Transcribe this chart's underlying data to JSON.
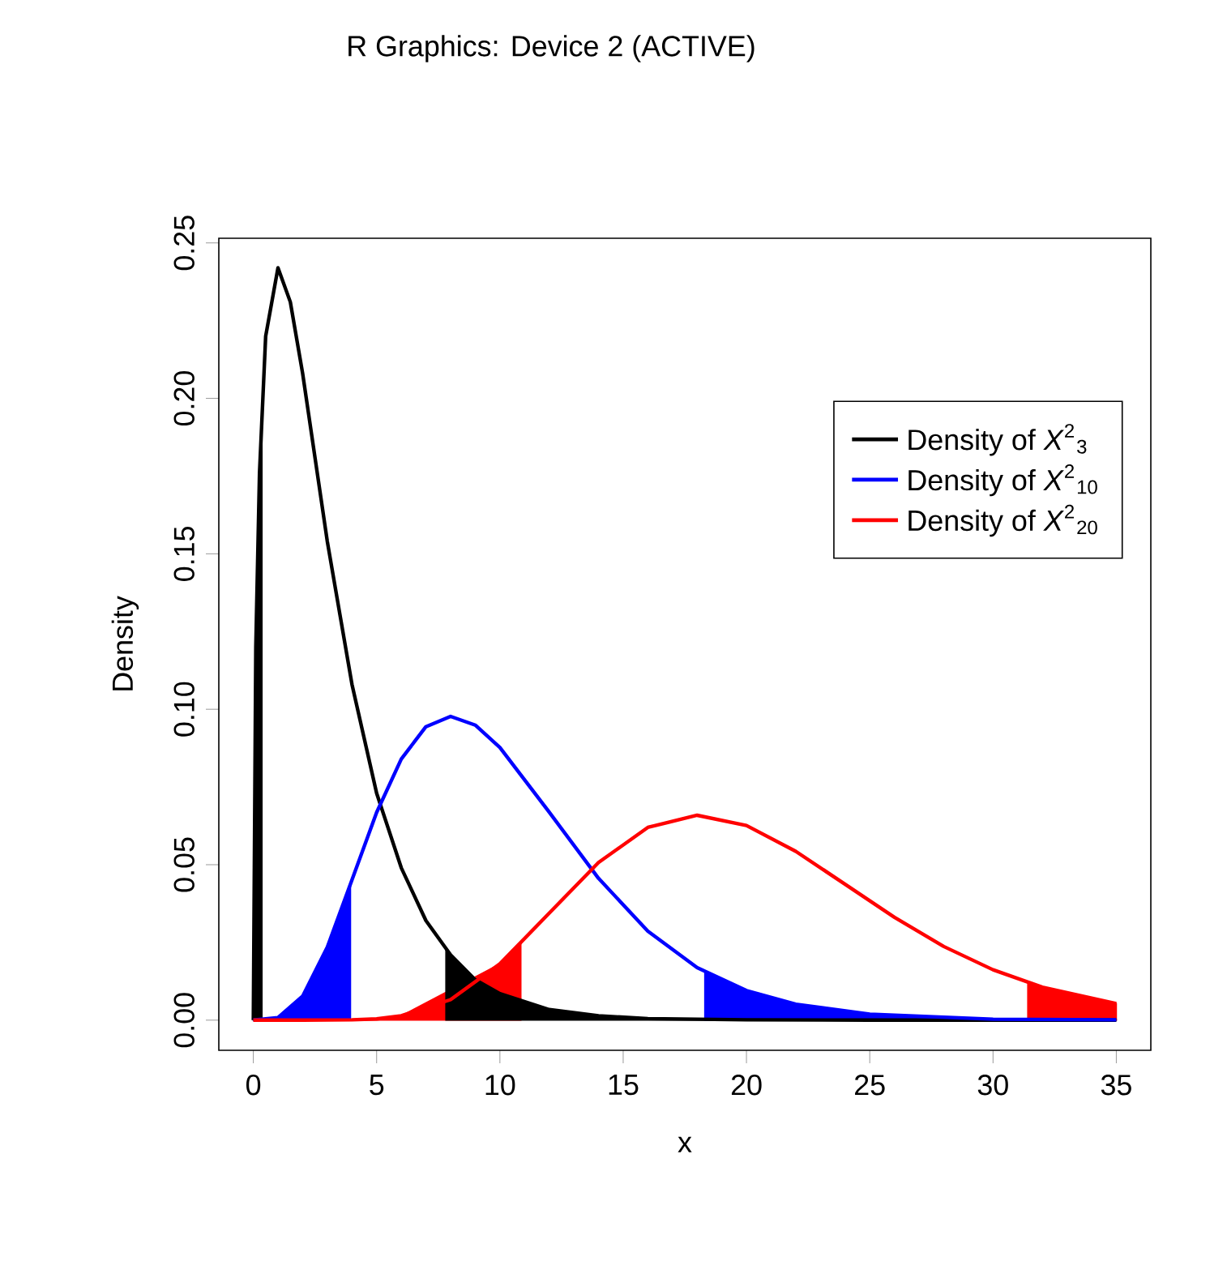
{
  "chart_data": {
    "type": "line",
    "title": "R Graphics: Device 2 (ACTIVE)",
    "xlabel": "x",
    "ylabel": "Density",
    "xlim": [
      -1.4,
      36.4
    ],
    "ylim": [
      -0.0097,
      0.2515
    ],
    "xticks": [
      0,
      5,
      10,
      15,
      20,
      25,
      30,
      35
    ],
    "yticks": [
      {
        "value": 0,
        "label": "0.00"
      },
      {
        "value": 0.05,
        "label": "0.05"
      },
      {
        "value": 0.1,
        "label": "0.10"
      },
      {
        "value": 0.15,
        "label": "0.15"
      },
      {
        "value": 0.2,
        "label": "0.20"
      },
      {
        "value": 0.25,
        "label": "0.25"
      }
    ],
    "legend": "top right",
    "marker": "none",
    "line_style": "solid",
    "series": [
      {
        "type": "area",
        "color": "#000000",
        "x": [
          0,
          0.1,
          0.25,
          0.35
        ],
        "values": [
          0,
          0.12,
          0.176,
          0.198
        ]
      },
      {
        "type": "area",
        "color": "#0000ff",
        "x": [
          0,
          1,
          2,
          3,
          3.94
        ],
        "values": [
          0,
          0.0008,
          0.0077,
          0.0235,
          0.0438
        ]
      },
      {
        "type": "area",
        "color": "#ff0000",
        "x": [
          0,
          2,
          4,
          5,
          6,
          8,
          10,
          10.85
        ],
        "values": [
          0,
          0,
          0.0001,
          0.0004,
          0.0014,
          null,
          0.0181,
          0.0247
        ]
      },
      {
        "type": "area",
        "color": "#000000",
        "x": [
          7.81,
          8,
          9,
          10,
          12,
          14,
          16,
          20,
          25,
          30,
          35
        ],
        "values": [
          0.0225,
          0.021,
          0.013,
          0.0085,
          0.0034,
          0.0014,
          0.0005,
          0.0001,
          0,
          0,
          0
        ]
      },
      {
        "type": "area",
        "color": "#0000ff",
        "x": [
          18.31,
          20,
          22,
          25,
          30,
          35
        ],
        "values": [
          0.0155,
          0.0095,
          0.0051,
          0.0019,
          0.0003,
          0.0001
        ]
      },
      {
        "type": "area",
        "color": "#ff0000",
        "x": [
          31.41,
          32,
          35
        ],
        "values": [
          0.0121,
          0.0106,
          0.0053
        ]
      },
      {
        "name": "Density of *X*$^{2}$$_{3}$",
        "color": "#000000",
        "x": [
          0,
          0.1,
          0.25,
          0.5,
          1,
          1.5,
          2,
          3,
          4,
          5,
          6,
          7,
          8,
          9,
          10,
          12,
          14,
          16,
          20,
          25,
          30,
          35
        ],
        "values": [
          0,
          0.12,
          0.176,
          0.22,
          0.242,
          0.231,
          0.208,
          0.154,
          0.108,
          0.073,
          0.049,
          0.032,
          0.021,
          0.013,
          0.0085,
          0.0034,
          0.0014,
          0.0005,
          0.0001,
          0,
          0,
          0
        ]
      },
      {
        "name": "Density of *X*$^{2}$$_{10}$",
        "color": "#0000ff",
        "x": [
          0,
          1,
          2,
          3,
          4,
          5,
          6,
          7,
          8,
          9,
          10,
          12,
          14,
          16,
          18,
          20,
          22,
          25,
          30,
          35
        ],
        "values": [
          0,
          0.0008,
          0.0077,
          0.0235,
          0.0451,
          0.0668,
          0.084,
          0.0944,
          0.0977,
          0.0949,
          0.0877,
          0.0669,
          0.0456,
          0.0286,
          0.0169,
          0.0095,
          0.0051,
          0.0019,
          0.0003,
          0.0001
        ]
      },
      {
        "name": "Density of *X*$^{2}$$_{20}$",
        "color": "#ff0000",
        "x": [
          0,
          2,
          4,
          5,
          6,
          8,
          10,
          12,
          14,
          16,
          18,
          20,
          22,
          24,
          26,
          28,
          30,
          32,
          35
        ],
        "values": [
          0,
          0,
          0.0001,
          0.0004,
          0.0014,
          0.0066,
          0.0181,
          0.0344,
          0.0507,
          0.062,
          0.0659,
          0.0626,
          0.0543,
          0.0437,
          0.0331,
          0.0237,
          0.0162,
          0.0106,
          0.0053
        ]
      }
    ]
  }
}
